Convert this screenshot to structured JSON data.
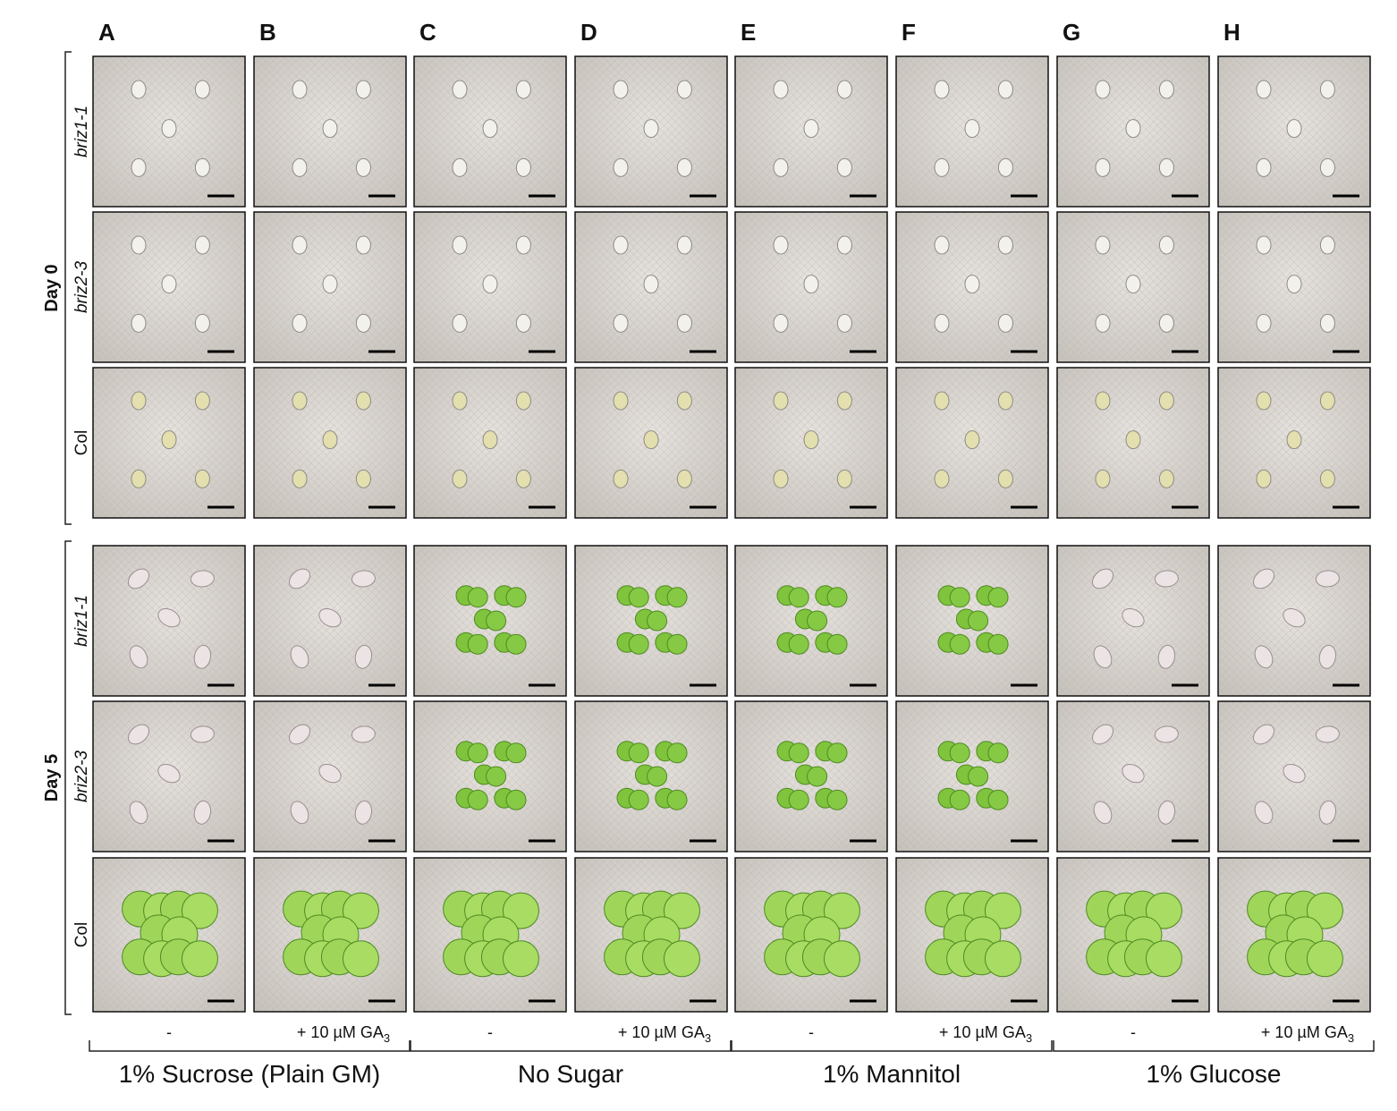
{
  "columns": [
    "A",
    "B",
    "C",
    "D",
    "E",
    "F",
    "G",
    "H"
  ],
  "days": [
    {
      "label": "Day 0",
      "rows": [
        "briz1-1",
        "briz2-3",
        "Col"
      ]
    },
    {
      "label": "Day 5",
      "rows": [
        "briz1-1",
        "briz2-3",
        "Col"
      ]
    }
  ],
  "groups": [
    {
      "name": "1% Sucrose (Plain GM)",
      "treatments": [
        {
          "label": "-"
        },
        {
          "label": "+ 10 µM GA",
          "subscript": "3"
        }
      ]
    },
    {
      "name": "No Sugar",
      "treatments": [
        {
          "label": "-"
        },
        {
          "label": "+ 10 µM GA",
          "subscript": "3"
        }
      ]
    },
    {
      "name": "1% Mannitol",
      "treatments": [
        {
          "label": "-"
        },
        {
          "label": "+ 10 µM GA",
          "subscript": "3"
        }
      ]
    },
    {
      "name": "1% Glucose",
      "treatments": [
        {
          "label": "-"
        },
        {
          "label": "+ 10 µM GA",
          "subscript": "3"
        }
      ]
    }
  ]
}
